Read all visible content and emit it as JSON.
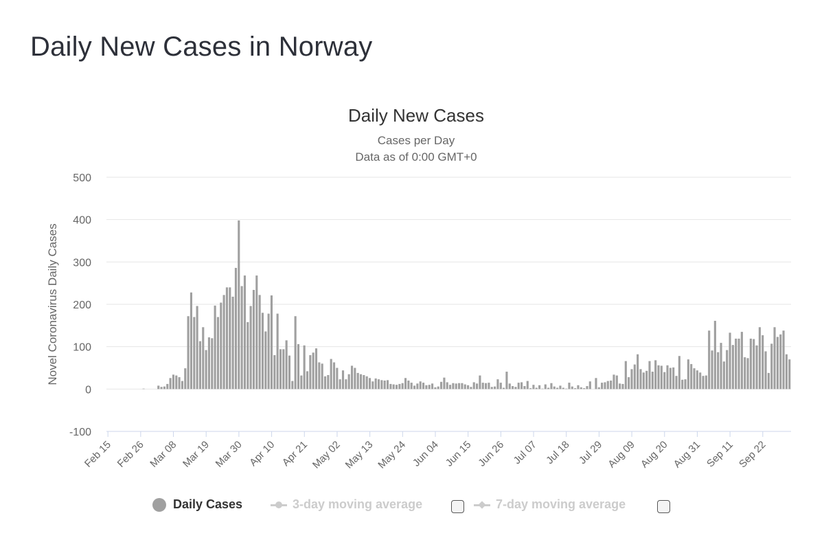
{
  "page": {
    "title": "Daily New Cases in Norway"
  },
  "chart_data": {
    "type": "bar",
    "title": "Daily New Cases",
    "subtitle_line1": "Cases per Day",
    "subtitle_line2": "Data as of 0:00 GMT+0",
    "ylabel": "Novel Coronavirus Daily Cases",
    "ylim": [
      -100,
      500
    ],
    "yticks": [
      500,
      400,
      300,
      200,
      100,
      0,
      -100
    ],
    "start_date": "Feb 15",
    "xtick_labels": [
      "Feb 15",
      "Feb 26",
      "Mar 08",
      "Mar 19",
      "Mar 30",
      "Apr 10",
      "Apr 21",
      "May 02",
      "May 13",
      "May 24",
      "Jun 04",
      "Jun 15",
      "Jun 26",
      "Jul 07",
      "Jul 18",
      "Jul 29",
      "Aug 09",
      "Aug 20",
      "Aug 31",
      "Sep 11",
      "Sep 22"
    ],
    "xtick_every_days": 11,
    "grid": true,
    "bar_color": "#a0a0a0",
    "series": [
      {
        "name": "Daily Cases",
        "values": [
          0,
          0,
          0,
          0,
          0,
          0,
          0,
          0,
          0,
          0,
          0,
          0,
          1,
          0,
          0,
          0,
          0,
          8,
          5,
          6,
          12,
          26,
          34,
          32,
          28,
          19,
          49,
          172,
          228,
          170,
          196,
          113,
          146,
          92,
          122,
          120,
          197,
          170,
          204,
          222,
          240,
          240,
          218,
          286,
          398,
          243,
          268,
          158,
          196,
          234,
          268,
          222,
          180,
          136,
          178,
          221,
          80,
          178,
          94,
          94,
          115,
          79,
          19,
          172,
          106,
          32,
          103,
          42,
          80,
          86,
          96,
          63,
          60,
          30,
          33,
          71,
          63,
          50,
          23,
          44,
          23,
          35,
          55,
          50,
          38,
          35,
          33,
          30,
          26,
          18,
          25,
          23,
          21,
          20,
          21,
          12,
          11,
          10,
          12,
          14,
          26,
          20,
          15,
          8,
          13,
          18,
          15,
          9,
          10,
          13,
          4,
          6,
          17,
          27,
          16,
          10,
          14,
          13,
          14,
          14,
          11,
          9,
          5,
          16,
          13,
          32,
          15,
          14,
          15,
          5,
          6,
          23,
          15,
          3,
          41,
          13,
          7,
          5,
          15,
          16,
          7,
          19,
          2,
          10,
          3,
          9,
          1,
          11,
          3,
          14,
          6,
          3,
          8,
          3,
          1,
          15,
          6,
          2,
          9,
          4,
          2,
          7,
          18,
          0,
          26,
          4,
          15,
          16,
          19,
          20,
          34,
          32,
          13,
          12,
          66,
          28,
          47,
          58,
          82,
          47,
          39,
          43,
          66,
          41,
          68,
          56,
          55,
          40,
          56,
          50,
          51,
          31,
          78,
          22,
          23,
          70,
          59,
          49,
          44,
          39,
          31,
          32,
          138,
          91,
          161,
          87,
          109,
          65,
          92,
          133,
          104,
          119,
          119,
          135,
          75,
          73,
          119,
          118,
          103,
          146,
          127,
          89,
          38,
          107,
          146,
          123,
          129,
          138,
          82,
          70
        ]
      },
      {
        "name": "3-day moving average"
      },
      {
        "name": "7-day moving average"
      }
    ]
  },
  "legend": {
    "daily_cases": "Daily Cases",
    "avg3": "3-day moving average",
    "avg7": "7-day moving average"
  }
}
